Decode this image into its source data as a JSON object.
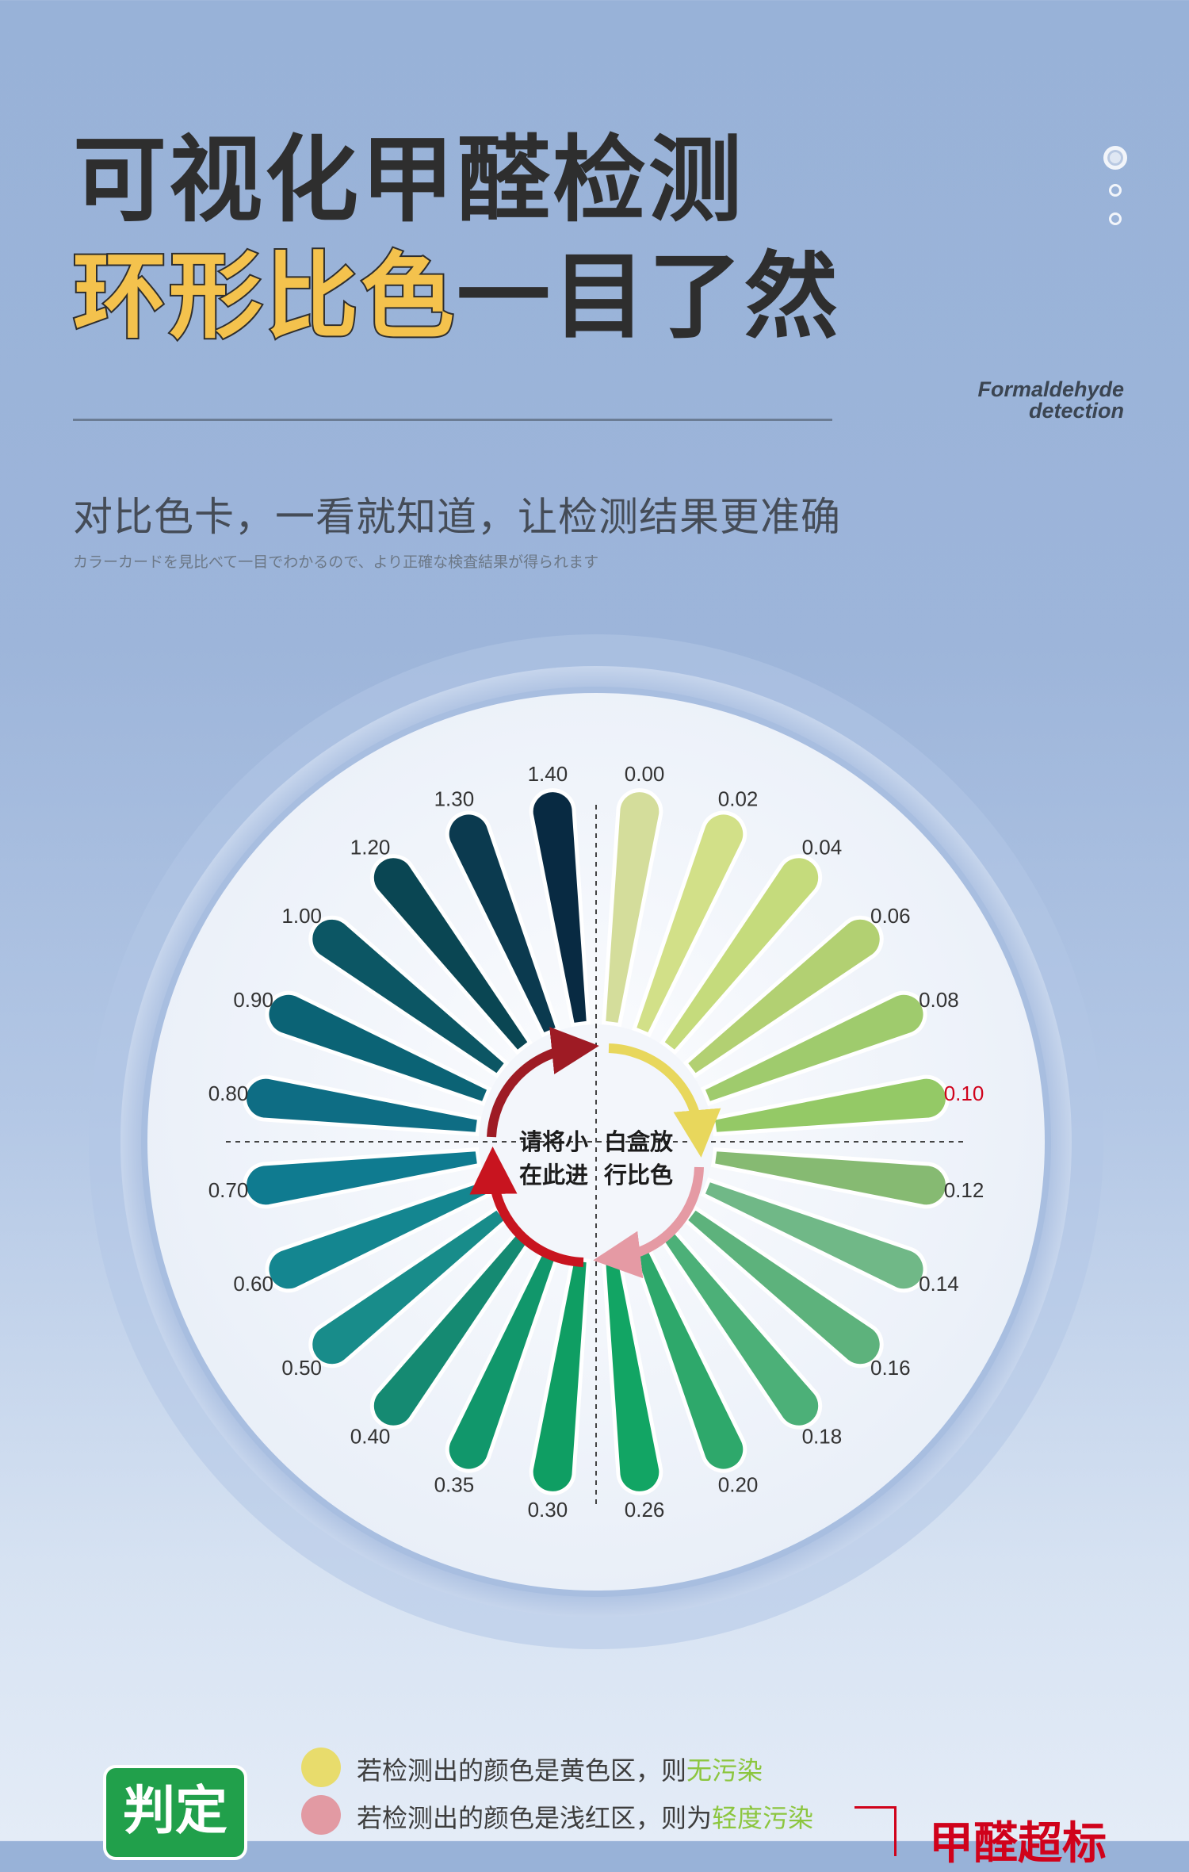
{
  "header": {
    "title_line1": "可视化甲醛检测",
    "title_line2_highlight": "环形比色",
    "title_line2_rest": "一目了然",
    "en_caption_line1": "Formaldehyde",
    "en_caption_line2": "detection",
    "subtitle": "对比色卡，一看就知道，让检测结果更准确",
    "subtitle_jp": "カラーカードを見比べて一目でわかるので、より正確な検査結果が得られます"
  },
  "colors": {
    "highlight_title": "#f4c24d",
    "title_dark": "#2e2e2e",
    "badge_green": "#21a04b",
    "warning_red": "#d0021b"
  },
  "chart_data": {
    "type": "color-wheel",
    "center_text": [
      "请将小",
      "白盒放",
      "在此进",
      "行比色"
    ],
    "highlighted_label": "0.10",
    "petals": [
      {
        "label": "0.00",
        "color": "#d4dd9b"
      },
      {
        "label": "0.02",
        "color": "#d2e088"
      },
      {
        "label": "0.04",
        "color": "#c5db7c"
      },
      {
        "label": "0.06",
        "color": "#b2d072"
      },
      {
        "label": "0.08",
        "color": "#9fcb6d"
      },
      {
        "label": "0.10",
        "color": "#94c966"
      },
      {
        "label": "0.12",
        "color": "#86ba72"
      },
      {
        "label": "0.14",
        "color": "#70b887"
      },
      {
        "label": "0.16",
        "color": "#5db27c"
      },
      {
        "label": "0.18",
        "color": "#4cb078"
      },
      {
        "label": "0.20",
        "color": "#2ea86b"
      },
      {
        "label": "0.26",
        "color": "#12a564"
      },
      {
        "label": "0.30",
        "color": "#0f9e63"
      },
      {
        "label": "0.35",
        "color": "#11976b"
      },
      {
        "label": "0.40",
        "color": "#158a72"
      },
      {
        "label": "0.50",
        "color": "#188c8a"
      },
      {
        "label": "0.60",
        "color": "#148690"
      },
      {
        "label": "0.70",
        "color": "#0f7b90"
      },
      {
        "label": "0.80",
        "color": "#0e6d84"
      },
      {
        "label": "0.90",
        "color": "#0b6375"
      },
      {
        "label": "1.00",
        "color": "#0c5664"
      },
      {
        "label": "1.20",
        "color": "#0a4653"
      },
      {
        "label": "1.30",
        "color": "#0b3a4f"
      },
      {
        "label": "1.40",
        "color": "#082a42"
      }
    ],
    "arrows": [
      {
        "name": "top-right",
        "color": "#e8d75c"
      },
      {
        "name": "bottom-right",
        "color": "#e59aa4"
      },
      {
        "name": "bottom-left",
        "color": "#c8141f"
      },
      {
        "name": "top-left",
        "color": "#9e1b24"
      }
    ]
  },
  "legend": {
    "badge": "判定",
    "rows": [
      {
        "text": "若检测出的颜色是黄色区，则",
        "emphasis": "无污染",
        "color": "#e8dc6c"
      },
      {
        "text": "若检测出的颜色是浅红区，则为",
        "emphasis": "轻度污染",
        "color": "#e29aa3"
      }
    ],
    "verdict": "甲醛超标"
  }
}
